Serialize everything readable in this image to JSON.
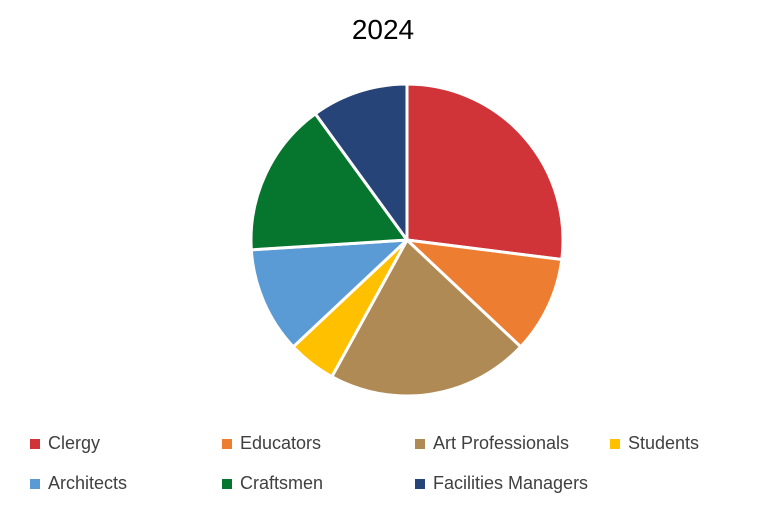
{
  "chart_data": {
    "type": "pie",
    "title": "2024",
    "categories": [
      "Clergy",
      "Educators",
      "Art Professionals",
      "Students",
      "Architects",
      "Craftsmen",
      "Facilities Managers"
    ],
    "values": [
      27,
      10,
      21,
      5,
      11,
      16,
      10
    ],
    "colors": [
      "#D13438",
      "#ED7D31",
      "#B08A55",
      "#FFC000",
      "#5B9BD5",
      "#06752D",
      "#264478"
    ],
    "legend_position": "bottom",
    "start_angle": "12 o'clock",
    "direction": "clockwise"
  }
}
